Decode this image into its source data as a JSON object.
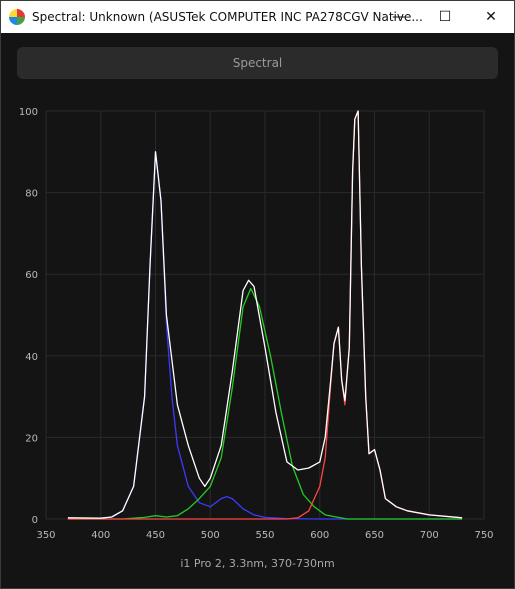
{
  "window": {
    "title": "Spectral: Unknown (ASUSTek COMPUTER INC PA278CGV Native...",
    "minimize_glyph": "—",
    "maximize_glyph": "☐",
    "close_glyph": "✕"
  },
  "mode_label": "Spectral",
  "footer": "i1 Pro 2, 3.3nm, 370-730nm",
  "colors": {
    "background": "#141414",
    "grid": "#2a2a2a",
    "white": "#ffffff",
    "blue": "#3b3bff",
    "green": "#22cc22",
    "red": "#ff4444"
  },
  "chart_data": {
    "type": "line",
    "xlim": [
      350,
      750
    ],
    "ylim": [
      0,
      100
    ],
    "x_ticks": [
      350,
      400,
      450,
      500,
      550,
      600,
      650,
      700,
      750
    ],
    "y_ticks": [
      0,
      20,
      40,
      60,
      80,
      100
    ],
    "grid": true,
    "series": [
      {
        "color": "white",
        "points": [
          [
            370,
            0.3
          ],
          [
            400,
            0.2
          ],
          [
            410,
            0.5
          ],
          [
            420,
            2
          ],
          [
            430,
            8
          ],
          [
            440,
            30
          ],
          [
            445,
            62
          ],
          [
            450,
            90
          ],
          [
            455,
            78
          ],
          [
            460,
            50
          ],
          [
            470,
            28
          ],
          [
            480,
            18
          ],
          [
            490,
            10
          ],
          [
            495,
            8
          ],
          [
            500,
            10
          ],
          [
            510,
            18
          ],
          [
            520,
            36
          ],
          [
            530,
            56
          ],
          [
            535,
            58.5
          ],
          [
            540,
            57
          ],
          [
            550,
            42
          ],
          [
            560,
            26
          ],
          [
            570,
            14
          ],
          [
            580,
            12
          ],
          [
            590,
            12.5
          ],
          [
            600,
            14
          ],
          [
            605,
            20
          ],
          [
            610,
            34
          ],
          [
            613,
            43
          ],
          [
            617,
            47
          ],
          [
            620,
            34
          ],
          [
            623,
            29
          ],
          [
            627,
            42
          ],
          [
            630,
            85
          ],
          [
            632,
            98
          ],
          [
            635,
            100
          ],
          [
            638,
            62
          ],
          [
            642,
            30
          ],
          [
            645,
            16
          ],
          [
            650,
            17
          ],
          [
            655,
            12
          ],
          [
            660,
            5
          ],
          [
            670,
            3
          ],
          [
            680,
            2
          ],
          [
            700,
            1
          ],
          [
            730,
            0.3
          ]
        ]
      },
      {
        "color": "blue",
        "points": [
          [
            370,
            0.2
          ],
          [
            400,
            0.2
          ],
          [
            410,
            0.5
          ],
          [
            420,
            2
          ],
          [
            430,
            8
          ],
          [
            440,
            30
          ],
          [
            445,
            62
          ],
          [
            450,
            90
          ],
          [
            455,
            78
          ],
          [
            460,
            48
          ],
          [
            465,
            30
          ],
          [
            470,
            18
          ],
          [
            480,
            8
          ],
          [
            490,
            4
          ],
          [
            500,
            3
          ],
          [
            510,
            5
          ],
          [
            515,
            5.5
          ],
          [
            520,
            5
          ],
          [
            530,
            2.5
          ],
          [
            540,
            1
          ],
          [
            550,
            0.4
          ],
          [
            570,
            0.1
          ],
          [
            600,
            0
          ],
          [
            730,
            0
          ]
        ]
      },
      {
        "color": "green",
        "points": [
          [
            370,
            0
          ],
          [
            420,
            0
          ],
          [
            440,
            0.4
          ],
          [
            450,
            0.8
          ],
          [
            460,
            0.5
          ],
          [
            470,
            0.8
          ],
          [
            480,
            2.5
          ],
          [
            490,
            5
          ],
          [
            500,
            8
          ],
          [
            510,
            15
          ],
          [
            520,
            32
          ],
          [
            530,
            52
          ],
          [
            537,
            56.5
          ],
          [
            545,
            52
          ],
          [
            555,
            40
          ],
          [
            565,
            26
          ],
          [
            575,
            13
          ],
          [
            585,
            6
          ],
          [
            595,
            3
          ],
          [
            605,
            1
          ],
          [
            615,
            0.5
          ],
          [
            625,
            0
          ],
          [
            730,
            0
          ]
        ]
      },
      {
        "color": "red",
        "points": [
          [
            370,
            0
          ],
          [
            570,
            0
          ],
          [
            580,
            0.3
          ],
          [
            590,
            2
          ],
          [
            600,
            8
          ],
          [
            605,
            15
          ],
          [
            610,
            33
          ],
          [
            613,
            43
          ],
          [
            617,
            47
          ],
          [
            620,
            34
          ],
          [
            623,
            28
          ],
          [
            627,
            42
          ],
          [
            630,
            85
          ],
          [
            632,
            98
          ],
          [
            635,
            100
          ],
          [
            638,
            62
          ],
          [
            642,
            30
          ],
          [
            645,
            16
          ],
          [
            650,
            17
          ],
          [
            655,
            12
          ],
          [
            660,
            5
          ],
          [
            670,
            3
          ],
          [
            680,
            2
          ],
          [
            700,
            1
          ],
          [
            730,
            0.3
          ]
        ]
      }
    ]
  }
}
